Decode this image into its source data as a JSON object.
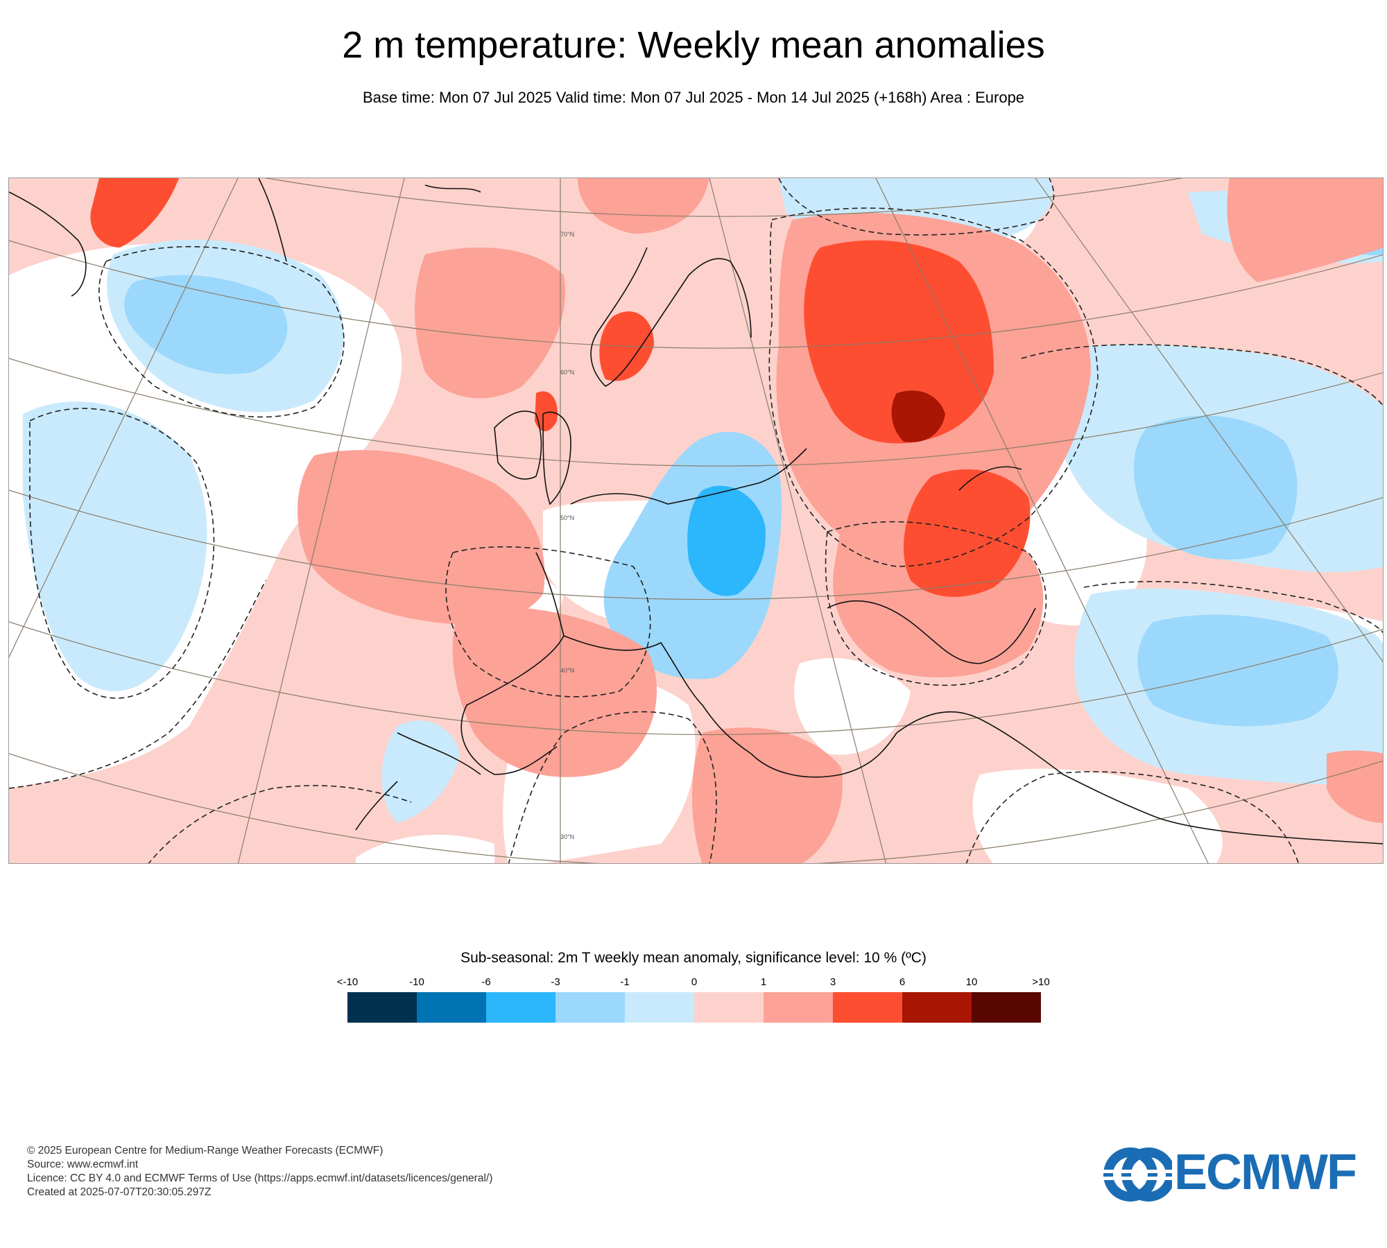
{
  "header": {
    "title": "2 m temperature: Weekly mean anomalies",
    "subtitle": "Base time: Mon 07 Jul 2025 Valid time: Mon 07 Jul 2025 - Mon 14 Jul 2025 (+168h) Area : Europe"
  },
  "map": {
    "lat_labels": [
      "70°N",
      "60°N",
      "50°N",
      "40°N",
      "30°N"
    ]
  },
  "legend": {
    "title": "Sub-seasonal: 2m T weekly mean anomaly, significance level: 10 % (ºC)",
    "ticks": [
      "<-10",
      "-10",
      "-6",
      "-3",
      "-1",
      "0",
      "1",
      "3",
      "6",
      "10",
      ">10"
    ],
    "colors": [
      "#00314f",
      "#0073b3",
      "#2cb6fc",
      "#9bd8fc",
      "#c9eafc",
      "#fdd2cc",
      "#fca297",
      "#fe4e32",
      "#a91603",
      "#5a0702"
    ]
  },
  "footer": {
    "lines": [
      "© 2025 European Centre for Medium-Range Weather Forecasts (ECMWF)",
      "Source: www.ecmwf.int",
      "Licence: CC BY 4.0 and ECMWF Terms of Use (https://apps.ecmwf.int/datasets/licences/general/)",
      "Created at 2025-07-07T20:30:05.297Z"
    ]
  },
  "logo": {
    "text": "ECMWF",
    "color": "#1a6db5"
  }
}
